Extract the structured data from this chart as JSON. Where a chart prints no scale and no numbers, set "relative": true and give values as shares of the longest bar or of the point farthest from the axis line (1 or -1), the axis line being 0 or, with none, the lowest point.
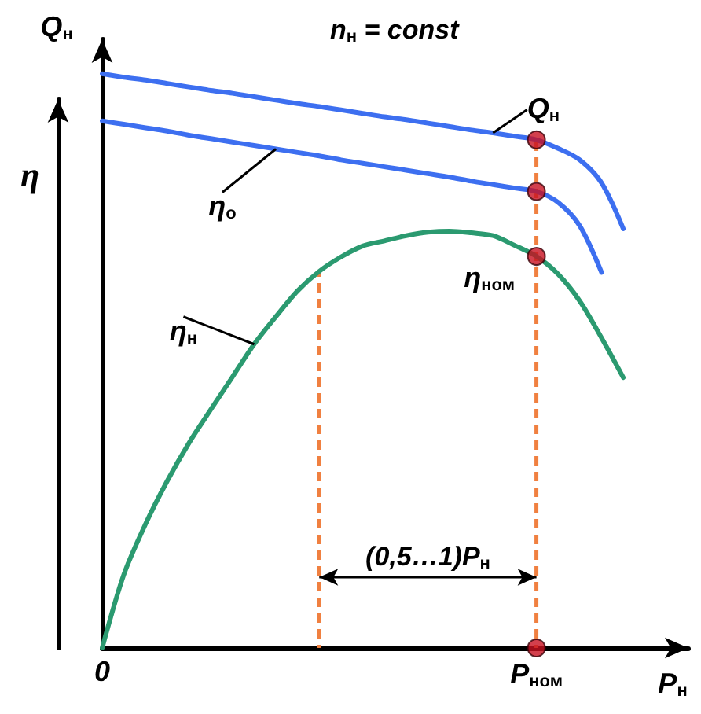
{
  "chart_data": {
    "type": "line",
    "title": "n$_{н}$ = const",
    "xlabel": "P$_{н}$",
    "ylabel": "Q$_{н}$",
    "y2label": "η",
    "relative": true,
    "grid": false,
    "legend": false,
    "marker": "none",
    "line_style": "solid",
    "categories": [
      "0",
      null,
      null,
      null,
      null,
      null,
      null,
      null,
      null,
      null,
      null,
      null,
      null,
      null,
      null,
      null,
      null,
      null,
      null,
      null,
      "P$_{ном}$",
      null,
      null,
      null,
      null,
      null,
      null,
      null
    ],
    "series": [
      {
        "name": "Q$_{н}$",
        "color": "#3d6ff0",
        "values": [
          1,
          0.994,
          0.989,
          0.983,
          0.977,
          0.971,
          0.966,
          0.96,
          0.954,
          0.948,
          0.943,
          0.937,
          0.931,
          0.925,
          0.92,
          0.914,
          0.908,
          0.902,
          0.897,
          0.891,
          0.885,
          0.87,
          0.85,
          0.81,
          0.73,
          null,
          null,
          null
        ]
      },
      {
        "name": "η$_{о}$",
        "color": "#3d6ff0",
        "values": [
          0.918,
          0.912,
          0.906,
          0.9,
          0.893,
          0.887,
          0.881,
          0.875,
          0.869,
          0.863,
          0.857,
          0.85,
          0.844,
          0.838,
          0.832,
          0.826,
          0.82,
          0.813,
          0.807,
          0.801,
          0.795,
          0.776,
          0.735,
          0.654,
          null,
          null,
          null,
          null
        ]
      },
      {
        "name": "η$_{н}$",
        "color": "#2b9a70",
        "values": [
          0,
          0.128,
          0.216,
          0.291,
          0.357,
          0.415,
          0.472,
          0.529,
          0.577,
          0.622,
          0.656,
          0.681,
          0.7,
          0.709,
          0.718,
          0.724,
          0.726,
          0.723,
          0.718,
          0.701,
          0.682,
          0.651,
          0.604,
          0.54,
          0.471,
          null,
          null,
          null
        ]
      },
      {
        "type": "bar",
        "color": "#f08040",
        "line_style": "dashed",
        "values": [
          null,
          null,
          null,
          null,
          null,
          null,
          null,
          null,
          null,
          null,
          0.656,
          null,
          null,
          null,
          null,
          null,
          null,
          null,
          null,
          null,
          0.885,
          null,
          null,
          null,
          null,
          null,
          null,
          null
        ]
      },
      {
        "type": "scatter",
        "marker": "circle",
        "color": "#c81020",
        "x": [
          "P$_{ном}$",
          "P$_{ном}$",
          "P$_{ном}$",
          "P$_{ном}$"
        ],
        "values": [
          0.885,
          0.795,
          0.682,
          0
        ]
      }
    ],
    "annotations": [
      {
        "text": "η$_{ном}$",
        "x": "P$_{ном}$",
        "y": 0.682
      },
      "(0,5…1)P$_{н}$"
    ]
  }
}
